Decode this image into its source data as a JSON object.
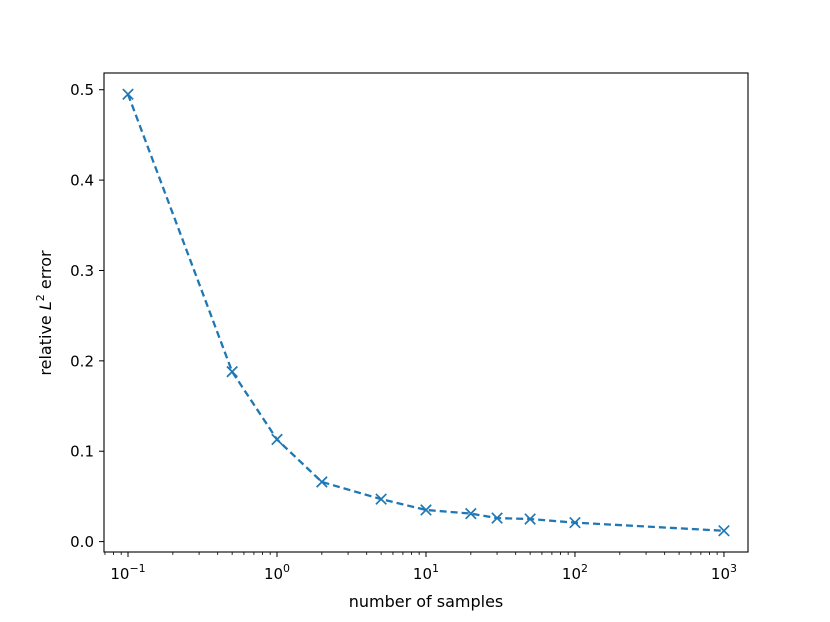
{
  "chart_data": {
    "type": "line",
    "title": "",
    "xlabel": "number of samples",
    "ylabel_prefix": "relative ",
    "ylabel_var": "L",
    "ylabel_sup": "2",
    "ylabel_suffix": " error",
    "x_scale": "log",
    "xlim": [
      0.069,
      1450
    ],
    "ylim": [
      -0.0115,
      0.5185
    ],
    "grid": false,
    "x_ticks": [
      {
        "value": 0.1,
        "base": "10",
        "exp": "−1"
      },
      {
        "value": 1,
        "base": "10",
        "exp": "0"
      },
      {
        "value": 10,
        "base": "10",
        "exp": "1"
      },
      {
        "value": 100,
        "base": "10",
        "exp": "2"
      },
      {
        "value": 1000,
        "base": "10",
        "exp": "3"
      }
    ],
    "y_ticks": [
      {
        "value": 0.0,
        "label": "0.0"
      },
      {
        "value": 0.1,
        "label": "0.1"
      },
      {
        "value": 0.2,
        "label": "0.2"
      },
      {
        "value": 0.3,
        "label": "0.3"
      },
      {
        "value": 0.4,
        "label": "0.4"
      },
      {
        "value": 0.5,
        "label": "0.5"
      }
    ],
    "series": [
      {
        "color": "#1f77b4",
        "line_style": "dashed",
        "marker": "x",
        "x": [
          0.1,
          0.5,
          1,
          2,
          5,
          10,
          20,
          30,
          50,
          100,
          1000
        ],
        "y": [
          0.495,
          0.188,
          0.113,
          0.066,
          0.047,
          0.035,
          0.031,
          0.026,
          0.025,
          0.021,
          0.012
        ]
      }
    ]
  }
}
